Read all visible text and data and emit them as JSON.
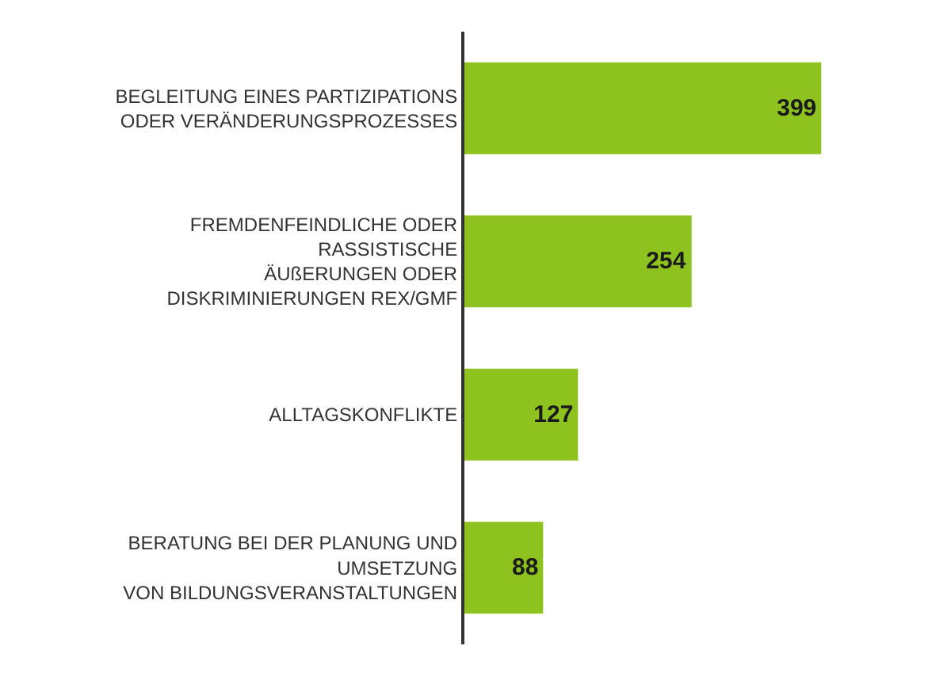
{
  "chart_data": {
    "type": "bar",
    "orientation": "horizontal",
    "categories": [
      "BEGLEITUNG EINES PARTIZIPATIONS\nODER VERÄNDERUNGSPROZESSES",
      "FREMDENFEINDLICHE ODER\nRASSISTISCHE\nÄUßERUNGEN ODER\nDISKRIMINIERUNGEN REX/GMF",
      "ALLTAGSKONFLIKTE",
      "BERATUNG BEI DER PLANUNG UND\nUMSETZUNG\nVON BILDUNGSVERANSTALTUNGEN"
    ],
    "values": [
      399,
      254,
      127,
      88
    ],
    "color": "#8dc21f",
    "data_labels": true
  }
}
